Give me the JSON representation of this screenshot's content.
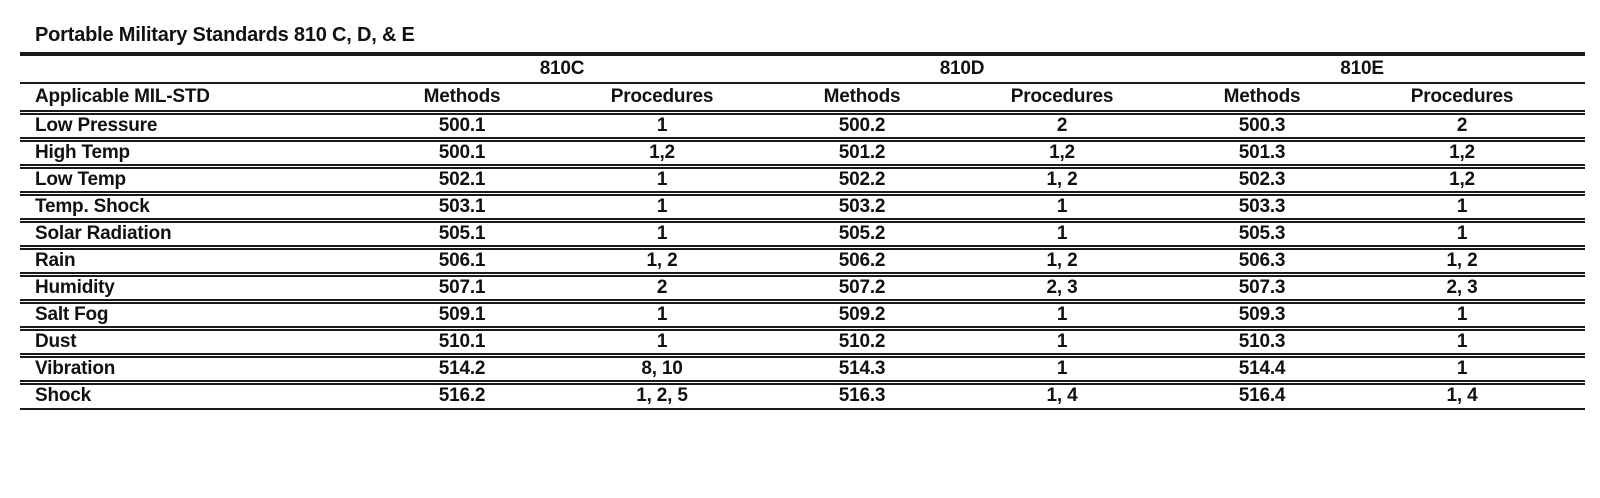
{
  "title": "Portable Military Standards 810 C, D, & E",
  "colors": {
    "background": "#ffffff",
    "text": "#111111",
    "rule": "#1a1a1a"
  },
  "table": {
    "group_headers": [
      "810C",
      "810D",
      "810E"
    ],
    "row_header_label": "Applicable MIL-STD",
    "column_headers": [
      "Methods",
      "Procedures",
      "Methods",
      "Procedures",
      "Methods",
      "Procedures"
    ],
    "rows": [
      {
        "label": "Low Pressure",
        "cells": [
          "500.1",
          "1",
          "500.2",
          "2",
          "500.3",
          "2"
        ]
      },
      {
        "label": "High Temp",
        "cells": [
          "500.1",
          "1,2",
          "501.2",
          "1,2",
          "501.3",
          "1,2"
        ]
      },
      {
        "label": "Low Temp",
        "cells": [
          "502.1",
          "1",
          "502.2",
          "1, 2",
          "502.3",
          "1,2"
        ]
      },
      {
        "label": "Temp. Shock",
        "cells": [
          "503.1",
          "1",
          "503.2",
          "1",
          "503.3",
          "1"
        ]
      },
      {
        "label": "Solar Radiation",
        "cells": [
          "505.1",
          "1",
          "505.2",
          "1",
          "505.3",
          "1"
        ]
      },
      {
        "label": "Rain",
        "cells": [
          "506.1",
          "1, 2",
          "506.2",
          "1, 2",
          "506.3",
          "1, 2"
        ]
      },
      {
        "label": "Humidity",
        "cells": [
          "507.1",
          "2",
          "507.2",
          "2, 3",
          "507.3",
          "2, 3"
        ]
      },
      {
        "label": "Salt Fog",
        "cells": [
          "509.1",
          "1",
          "509.2",
          "1",
          "509.3",
          "1"
        ]
      },
      {
        "label": "Dust",
        "cells": [
          "510.1",
          "1",
          "510.2",
          "1",
          "510.3",
          "1"
        ]
      },
      {
        "label": "Vibration",
        "cells": [
          "514.2",
          "8, 10",
          "514.3",
          "1",
          "514.4",
          "1"
        ]
      },
      {
        "label": "Shock",
        "cells": [
          "516.2",
          "1, 2, 5",
          "516.3",
          "1, 4",
          "516.4",
          "1, 4"
        ]
      }
    ]
  }
}
